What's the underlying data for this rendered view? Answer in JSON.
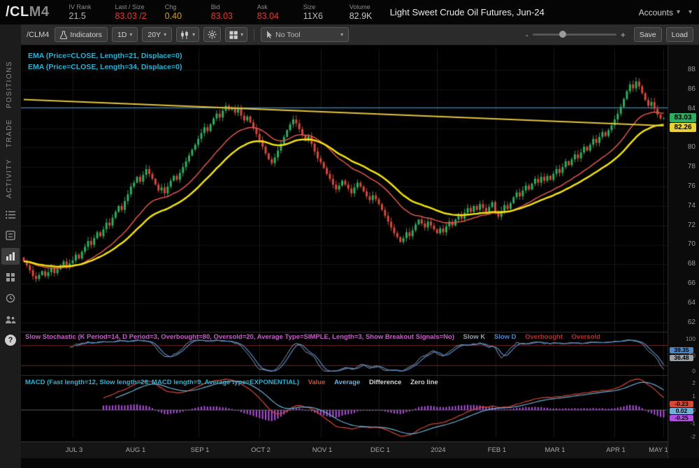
{
  "header": {
    "symbol": "/CL",
    "symbol_suffix": "M4",
    "fields": [
      {
        "label": "IV Rank",
        "value": "21.5",
        "color": "#b8b8b8"
      },
      {
        "label": "Last / Size",
        "value": "83.03 /2",
        "color": "#e03c32"
      },
      {
        "label": "Chg",
        "value": "0.40",
        "color": "#c9a227"
      },
      {
        "label": "Bid",
        "value": "83.03",
        "color": "#e03c32"
      },
      {
        "label": "Ask",
        "value": "83.04",
        "color": "#e03c32"
      },
      {
        "label": "Size",
        "value": "11X6",
        "color": "#b8b8b8"
      },
      {
        "label": "Volume",
        "value": "82.9K",
        "color": "#c8c8c8"
      }
    ],
    "title": "Light Sweet Crude Oil Futures, Jun-24",
    "accounts_label": "Accounts"
  },
  "sidebar": {
    "tabs": [
      {
        "label": "POSITIONS"
      },
      {
        "label": "TRADE"
      },
      {
        "label": "ACTIVITY"
      }
    ]
  },
  "toolbar": {
    "symbol": "/CLM4",
    "indicators_label": "Indicators",
    "timeframe": "1D",
    "range": "20Y",
    "tool_label": "No Tool",
    "zoom_minus": "-",
    "zoom_plus": "+",
    "save_label": "Save",
    "load_label": "Load"
  },
  "price_panel": {
    "study_labels": [
      {
        "text": "EMA (Price=CLOSE, Length=21, Displace=0)",
        "color": "#2bb3d4"
      },
      {
        "text": "EMA (Price=CLOSE, Length=34, Displace=0)",
        "color": "#2bb3d4"
      }
    ],
    "axis_ticks": [
      "88",
      "86",
      "84",
      "82",
      "80",
      "78",
      "76",
      "74",
      "72",
      "70",
      "68",
      "66",
      "64",
      "62"
    ],
    "bubbles": [
      {
        "text": "83.03",
        "bg": "#2fae61"
      },
      {
        "text": "82.26",
        "bg": "#e8d23a"
      }
    ]
  },
  "stoch_panel": {
    "title": "Slow Stochastic (K Period=14, D Period=3, Overbought=80, Oversold=20, Average Type=SIMPLE, Length=3, Show Breakout Signals=No)",
    "title_color": "#c45fc4",
    "legend": [
      {
        "label": "Slow K",
        "color": "#9aa0a6"
      },
      {
        "label": "Slow D",
        "color": "#4f86c6"
      },
      {
        "label": "Overbought",
        "color": "#b03030"
      },
      {
        "label": "Oversold",
        "color": "#b03030"
      }
    ],
    "axis_ticks": [
      "100",
      "50",
      "0"
    ],
    "bubbles": [
      {
        "text": "39.35",
        "bg": "#4f86c6"
      },
      {
        "text": "36.48",
        "bg": "#9aa0a6"
      }
    ]
  },
  "macd_panel": {
    "title": "MACD (Fast length=12, Slow length=26, MACD length=9, Average type=EXPONENTIAL)",
    "title_color": "#2bb3d4",
    "legend": [
      {
        "label": "Value",
        "color": "#d9493a"
      },
      {
        "label": "Average",
        "color": "#6fb1d8"
      },
      {
        "label": "Difference",
        "color": "#d8d8d8"
      },
      {
        "label": "Zero line",
        "color": "#cfcfcf"
      }
    ],
    "axis_ticks": [
      "2",
      "1",
      "0",
      "-1",
      "-2"
    ],
    "bubbles": [
      {
        "text": "-0.23",
        "bg": "#d9493a"
      },
      {
        "text": "0.02",
        "bg": "#6fb1d8"
      },
      {
        "text": "-0.25",
        "bg": "#b050e0"
      }
    ]
  },
  "time_axis": {
    "ticks": [
      {
        "label": "JUL 3",
        "i": 16
      },
      {
        "label": "AUG 1",
        "i": 36
      },
      {
        "label": "SEP 1",
        "i": 57
      },
      {
        "label": "OCT 2",
        "i": 77
      },
      {
        "label": "NOV 1",
        "i": 97
      },
      {
        "label": "DEC 1",
        "i": 116
      },
      {
        "label": "2024",
        "i": 135
      },
      {
        "label": "FEB 1",
        "i": 154
      },
      {
        "label": "MAR 1",
        "i": 173
      },
      {
        "label": "APR 1",
        "i": 193
      },
      {
        "label": "MAY 1",
        "i": 209
      }
    ]
  },
  "chart_data": {
    "type": "candlestick",
    "symbol": "/CLM4",
    "title": "Light Sweet Crude Oil Futures, Jun-24",
    "timeframe": "1D",
    "x_range": [
      "Jun 2023",
      "May 1 2024"
    ],
    "y_axis": {
      "min": 62,
      "max": 88,
      "tick_step": 2
    },
    "last_price": 83.03,
    "close": [
      68.3,
      67.9,
      67.4,
      66.8,
      66.5,
      66.9,
      67.3,
      66.8,
      67.2,
      67.6,
      67.1,
      67.5,
      67.9,
      68.3,
      67.8,
      68.1,
      68.4,
      69.0,
      68.6,
      69.3,
      69.8,
      70.4,
      70.0,
      70.7,
      71.3,
      70.9,
      71.6,
      72.3,
      72.0,
      72.8,
      73.4,
      74.0,
      73.6,
      74.5,
      75.2,
      76.0,
      76.4,
      77.0,
      76.5,
      77.2,
      77.8,
      77.3,
      76.8,
      76.2,
      75.6,
      75.9,
      75.3,
      76.0,
      76.6,
      77.1,
      76.7,
      77.4,
      78.0,
      78.6,
      79.2,
      79.8,
      80.3,
      80.9,
      81.5,
      82.1,
      81.7,
      82.4,
      83.0,
      83.5,
      83.1,
      83.8,
      84.3,
      83.9,
      84.1,
      83.6,
      84.0,
      83.3,
      82.8,
      83.2,
      82.6,
      82.0,
      81.4,
      80.8,
      80.1,
      79.4,
      78.8,
      78.4,
      79.0,
      79.7,
      80.4,
      81.1,
      81.8,
      82.4,
      82.9,
      82.5,
      81.9,
      81.3,
      80.7,
      81.2,
      80.4,
      79.6,
      78.9,
      78.5,
      77.9,
      77.3,
      76.8,
      76.2,
      75.7,
      76.1,
      76.6,
      76.2,
      75.8,
      75.3,
      75.9,
      76.4,
      76.0,
      75.5,
      75.0,
      74.6,
      75.1,
      74.7,
      74.2,
      73.6,
      73.0,
      72.4,
      71.8,
      71.2,
      70.8,
      70.3,
      70.7,
      71.3,
      70.9,
      71.5,
      72.1,
      72.6,
      72.2,
      71.8,
      72.4,
      72.0,
      71.6,
      71.2,
      71.7,
      71.3,
      71.9,
      72.4,
      72.0,
      72.6,
      73.1,
      72.7,
      73.3,
      73.8,
      73.4,
      74.0,
      73.6,
      74.2,
      73.8,
      73.4,
      73.9,
      74.4,
      73.3,
      72.9,
      73.5,
      74.1,
      73.7,
      74.3,
      74.9,
      75.4,
      75.0,
      75.6,
      76.1,
      75.7,
      76.3,
      76.8,
      76.4,
      77.0,
      76.6,
      77.1,
      76.7,
      77.3,
      77.8,
      77.4,
      78.0,
      78.6,
      78.2,
      78.8,
      79.3,
      78.9,
      79.5,
      80.1,
      79.7,
      80.3,
      80.9,
      80.5,
      81.1,
      81.6,
      81.2,
      81.8,
      82.3,
      82.9,
      83.5,
      84.2,
      85.0,
      85.8,
      86.5,
      86.1,
      86.8,
      86.3,
      85.6,
      84.9,
      84.3,
      84.7,
      84.0,
      83.4,
      83.0,
      83.03
    ],
    "overlays": [
      {
        "name": "EMA21",
        "type": "ema",
        "length": 21,
        "color": "#e2574f"
      },
      {
        "name": "EMA34",
        "type": "ema",
        "length": 34,
        "color": "#f2e20f"
      },
      {
        "name": "trendline",
        "type": "line",
        "from_price": 84.95,
        "to_price": 82.25,
        "color": "#e5c63c"
      },
      {
        "name": "horizontal-line",
        "type": "hline",
        "price": 84.1,
        "color": "#567fa2"
      }
    ],
    "studies": {
      "slow_stochastic": {
        "k_period": 14,
        "d_period": 3,
        "overbought": 80,
        "oversold": 20,
        "scale": [
          0,
          100
        ]
      },
      "macd": {
        "fast_length": 12,
        "slow_length": 26,
        "macd_length": 9,
        "scale": [
          -2,
          2
        ]
      }
    }
  }
}
